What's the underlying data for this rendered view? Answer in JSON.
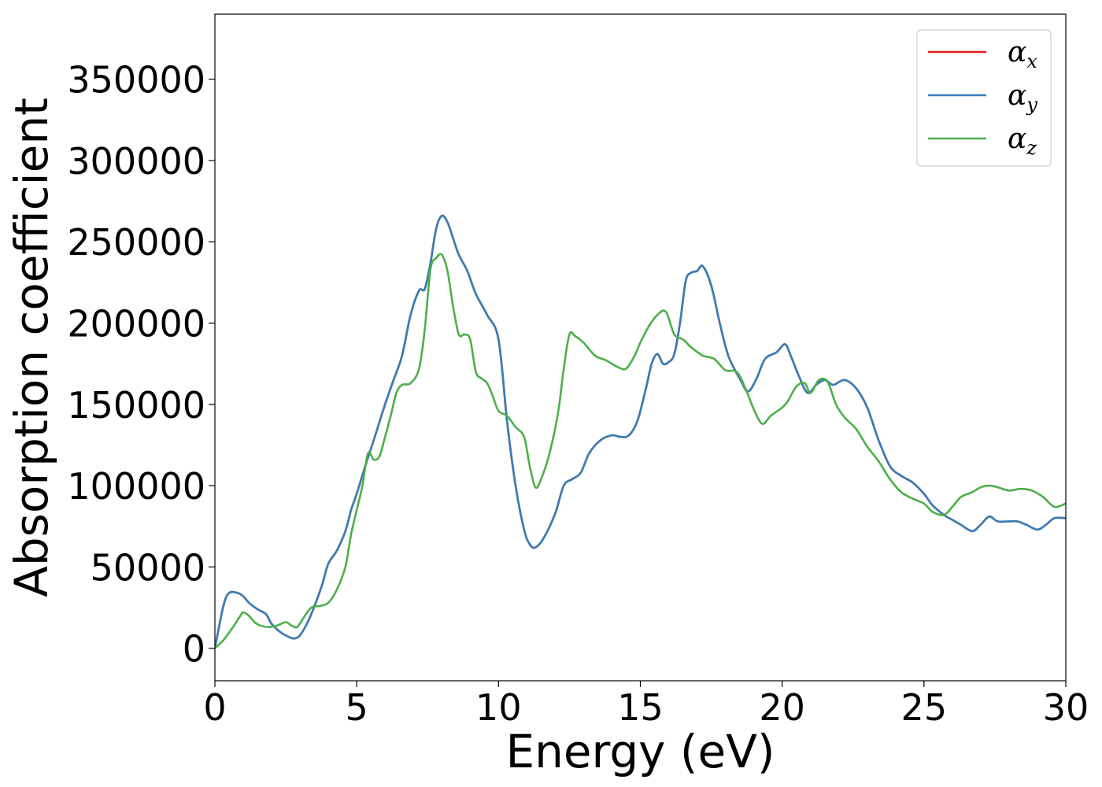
{
  "chart_data": {
    "type": "line",
    "title": "",
    "xlabel": "Energy (eV)",
    "ylabel": "Absorption coefficient",
    "xlim": [
      0,
      30
    ],
    "ylim": [
      -20000,
      390000
    ],
    "xticks": [
      0,
      5,
      10,
      15,
      20,
      25,
      30
    ],
    "yticks": [
      0,
      50000,
      100000,
      150000,
      200000,
      250000,
      300000,
      350000
    ],
    "grid": false,
    "legend_position": "top-right",
    "series": [
      {
        "name": "αx",
        "symbol": "α",
        "subscript": "x",
        "color": "#e41a1c",
        "x": [
          0,
          0.3,
          0.5,
          0.8,
          1.0,
          1.2,
          1.5,
          1.8,
          2.0,
          2.3,
          2.6,
          2.8,
          3.0,
          3.3,
          3.6,
          3.8,
          4.0,
          4.3,
          4.6,
          4.8,
          5.0,
          5.3,
          5.6,
          6.0,
          6.3,
          6.6,
          6.9,
          7.2,
          7.4,
          7.6,
          7.8,
          8.0,
          8.2,
          8.4,
          8.6,
          8.9,
          9.2,
          9.6,
          10.0,
          10.3,
          10.6,
          10.9,
          11.1,
          11.3,
          11.6,
          12.0,
          12.3,
          12.6,
          12.9,
          13.2,
          13.6,
          14.0,
          14.3,
          14.6,
          14.9,
          15.2,
          15.4,
          15.6,
          15.8,
          16.0,
          16.2,
          16.4,
          16.6,
          16.8,
          17.0,
          17.2,
          17.5,
          17.8,
          18.1,
          18.5,
          18.8,
          19.1,
          19.4,
          19.8,
          20.1,
          20.3,
          20.6,
          20.9,
          21.2,
          21.5,
          21.8,
          22.2,
          22.6,
          23.0,
          23.4,
          23.8,
          24.2,
          24.6,
          25.0,
          25.3,
          25.7,
          26.0,
          26.3,
          26.7,
          27.0,
          27.3,
          27.6,
          28.0,
          28.3,
          28.6,
          29.0,
          29.3,
          29.6,
          30.0
        ],
        "values": [
          0,
          26000,
          34000,
          34000,
          32000,
          28000,
          24000,
          21000,
          15000,
          10000,
          7000,
          6000,
          8000,
          17000,
          30000,
          40000,
          52000,
          60000,
          72000,
          85000,
          95000,
          112000,
          128000,
          150000,
          165000,
          180000,
          205000,
          220000,
          221000,
          237000,
          258000,
          266000,
          262000,
          252000,
          242000,
          232000,
          218000,
          205000,
          190000,
          140000,
          100000,
          73000,
          64000,
          62000,
          68000,
          83000,
          100000,
          104000,
          108000,
          120000,
          128000,
          131000,
          130000,
          131000,
          140000,
          160000,
          175000,
          181000,
          175000,
          176000,
          181000,
          200000,
          226000,
          231000,
          232000,
          235000,
          223000,
          200000,
          180000,
          166000,
          158000,
          166000,
          178000,
          182000,
          187000,
          180000,
          167000,
          157000,
          162000,
          165000,
          162000,
          165000,
          160000,
          148000,
          128000,
          112000,
          106000,
          102000,
          95000,
          88000,
          82000,
          79000,
          76000,
          72000,
          76000,
          81000,
          78000,
          78000,
          78000,
          76000,
          73000,
          76000,
          80000,
          80000
        ]
      },
      {
        "name": "αy",
        "symbol": "α",
        "subscript": "y",
        "color": "#377eb8",
        "x": [
          0,
          0.3,
          0.5,
          0.8,
          1.0,
          1.2,
          1.5,
          1.8,
          2.0,
          2.3,
          2.6,
          2.8,
          3.0,
          3.3,
          3.6,
          3.8,
          4.0,
          4.3,
          4.6,
          4.8,
          5.0,
          5.3,
          5.6,
          6.0,
          6.3,
          6.6,
          6.9,
          7.2,
          7.4,
          7.6,
          7.8,
          8.0,
          8.2,
          8.4,
          8.6,
          8.9,
          9.2,
          9.6,
          10.0,
          10.3,
          10.6,
          10.9,
          11.1,
          11.3,
          11.6,
          12.0,
          12.3,
          12.6,
          12.9,
          13.2,
          13.6,
          14.0,
          14.3,
          14.6,
          14.9,
          15.2,
          15.4,
          15.6,
          15.8,
          16.0,
          16.2,
          16.4,
          16.6,
          16.8,
          17.0,
          17.2,
          17.5,
          17.8,
          18.1,
          18.5,
          18.8,
          19.1,
          19.4,
          19.8,
          20.1,
          20.3,
          20.6,
          20.9,
          21.2,
          21.5,
          21.8,
          22.2,
          22.6,
          23.0,
          23.4,
          23.8,
          24.2,
          24.6,
          25.0,
          25.3,
          25.7,
          26.0,
          26.3,
          26.7,
          27.0,
          27.3,
          27.6,
          28.0,
          28.3,
          28.6,
          29.0,
          29.3,
          29.6,
          30.0
        ],
        "values": [
          0,
          26000,
          34000,
          34000,
          32000,
          28000,
          24000,
          21000,
          15000,
          10000,
          7000,
          6000,
          8000,
          17000,
          30000,
          40000,
          52000,
          60000,
          72000,
          85000,
          95000,
          112000,
          128000,
          150000,
          165000,
          180000,
          205000,
          220000,
          221000,
          237000,
          258000,
          266000,
          262000,
          252000,
          242000,
          232000,
          218000,
          205000,
          190000,
          140000,
          100000,
          73000,
          64000,
          62000,
          68000,
          83000,
          100000,
          104000,
          108000,
          120000,
          128000,
          131000,
          130000,
          131000,
          140000,
          160000,
          175000,
          181000,
          175000,
          176000,
          181000,
          200000,
          226000,
          231000,
          232000,
          235000,
          223000,
          200000,
          180000,
          166000,
          158000,
          166000,
          178000,
          182000,
          187000,
          180000,
          167000,
          157000,
          162000,
          165000,
          162000,
          165000,
          160000,
          148000,
          128000,
          112000,
          106000,
          102000,
          95000,
          88000,
          82000,
          79000,
          76000,
          72000,
          76000,
          81000,
          78000,
          78000,
          78000,
          76000,
          73000,
          76000,
          80000,
          80000
        ]
      },
      {
        "name": "αz",
        "symbol": "α",
        "subscript": "z",
        "color": "#4daf4a",
        "x": [
          0,
          0.3,
          0.6,
          0.9,
          1.0,
          1.2,
          1.4,
          1.6,
          1.9,
          2.2,
          2.5,
          2.7,
          2.9,
          3.1,
          3.4,
          3.7,
          4.0,
          4.3,
          4.6,
          4.8,
          5.0,
          5.2,
          5.4,
          5.6,
          5.8,
          6.0,
          6.2,
          6.4,
          6.6,
          6.9,
          7.2,
          7.4,
          7.6,
          7.8,
          8.0,
          8.2,
          8.4,
          8.6,
          8.8,
          9.0,
          9.2,
          9.4,
          9.6,
          9.8,
          10.0,
          10.3,
          10.6,
          10.9,
          11.1,
          11.3,
          11.5,
          11.8,
          12.1,
          12.3,
          12.5,
          12.7,
          13.0,
          13.4,
          13.8,
          14.2,
          14.5,
          14.8,
          15.0,
          15.3,
          15.6,
          15.9,
          16.2,
          16.5,
          16.8,
          17.2,
          17.6,
          18.0,
          18.4,
          18.7,
          19.0,
          19.3,
          19.6,
          20.0,
          20.2,
          20.5,
          20.8,
          21.0,
          21.3,
          21.6,
          21.9,
          22.2,
          22.6,
          23.0,
          23.4,
          23.8,
          24.2,
          24.6,
          25.0,
          25.3,
          25.7,
          26.0,
          26.3,
          26.7,
          27.0,
          27.3,
          27.6,
          28.0,
          28.4,
          28.8,
          29.2,
          29.6,
          30.0
        ],
        "values": [
          0,
          5000,
          12000,
          20000,
          22000,
          20000,
          16000,
          14000,
          13000,
          14000,
          16000,
          14000,
          13000,
          18000,
          25000,
          26000,
          28000,
          36000,
          50000,
          70000,
          85000,
          100000,
          120000,
          116000,
          118000,
          130000,
          143000,
          157000,
          162000,
          163000,
          172000,
          196000,
          233000,
          240000,
          242000,
          232000,
          210000,
          193000,
          193000,
          190000,
          170000,
          166000,
          163000,
          155000,
          146000,
          143000,
          136000,
          130000,
          112000,
          99000,
          104000,
          120000,
          145000,
          172000,
          193000,
          192000,
          188000,
          180000,
          177000,
          173000,
          172000,
          180000,
          188000,
          198000,
          205000,
          207000,
          193000,
          190000,
          185000,
          180000,
          178000,
          171000,
          170000,
          160000,
          147000,
          138000,
          143000,
          148000,
          152000,
          161000,
          163000,
          157000,
          165000,
          164000,
          150000,
          142000,
          135000,
          124000,
          115000,
          104000,
          96000,
          92000,
          89000,
          84000,
          82000,
          87000,
          93000,
          96000,
          99000,
          100000,
          99000,
          97000,
          98000,
          97000,
          93000,
          87000,
          89000
        ]
      }
    ]
  }
}
